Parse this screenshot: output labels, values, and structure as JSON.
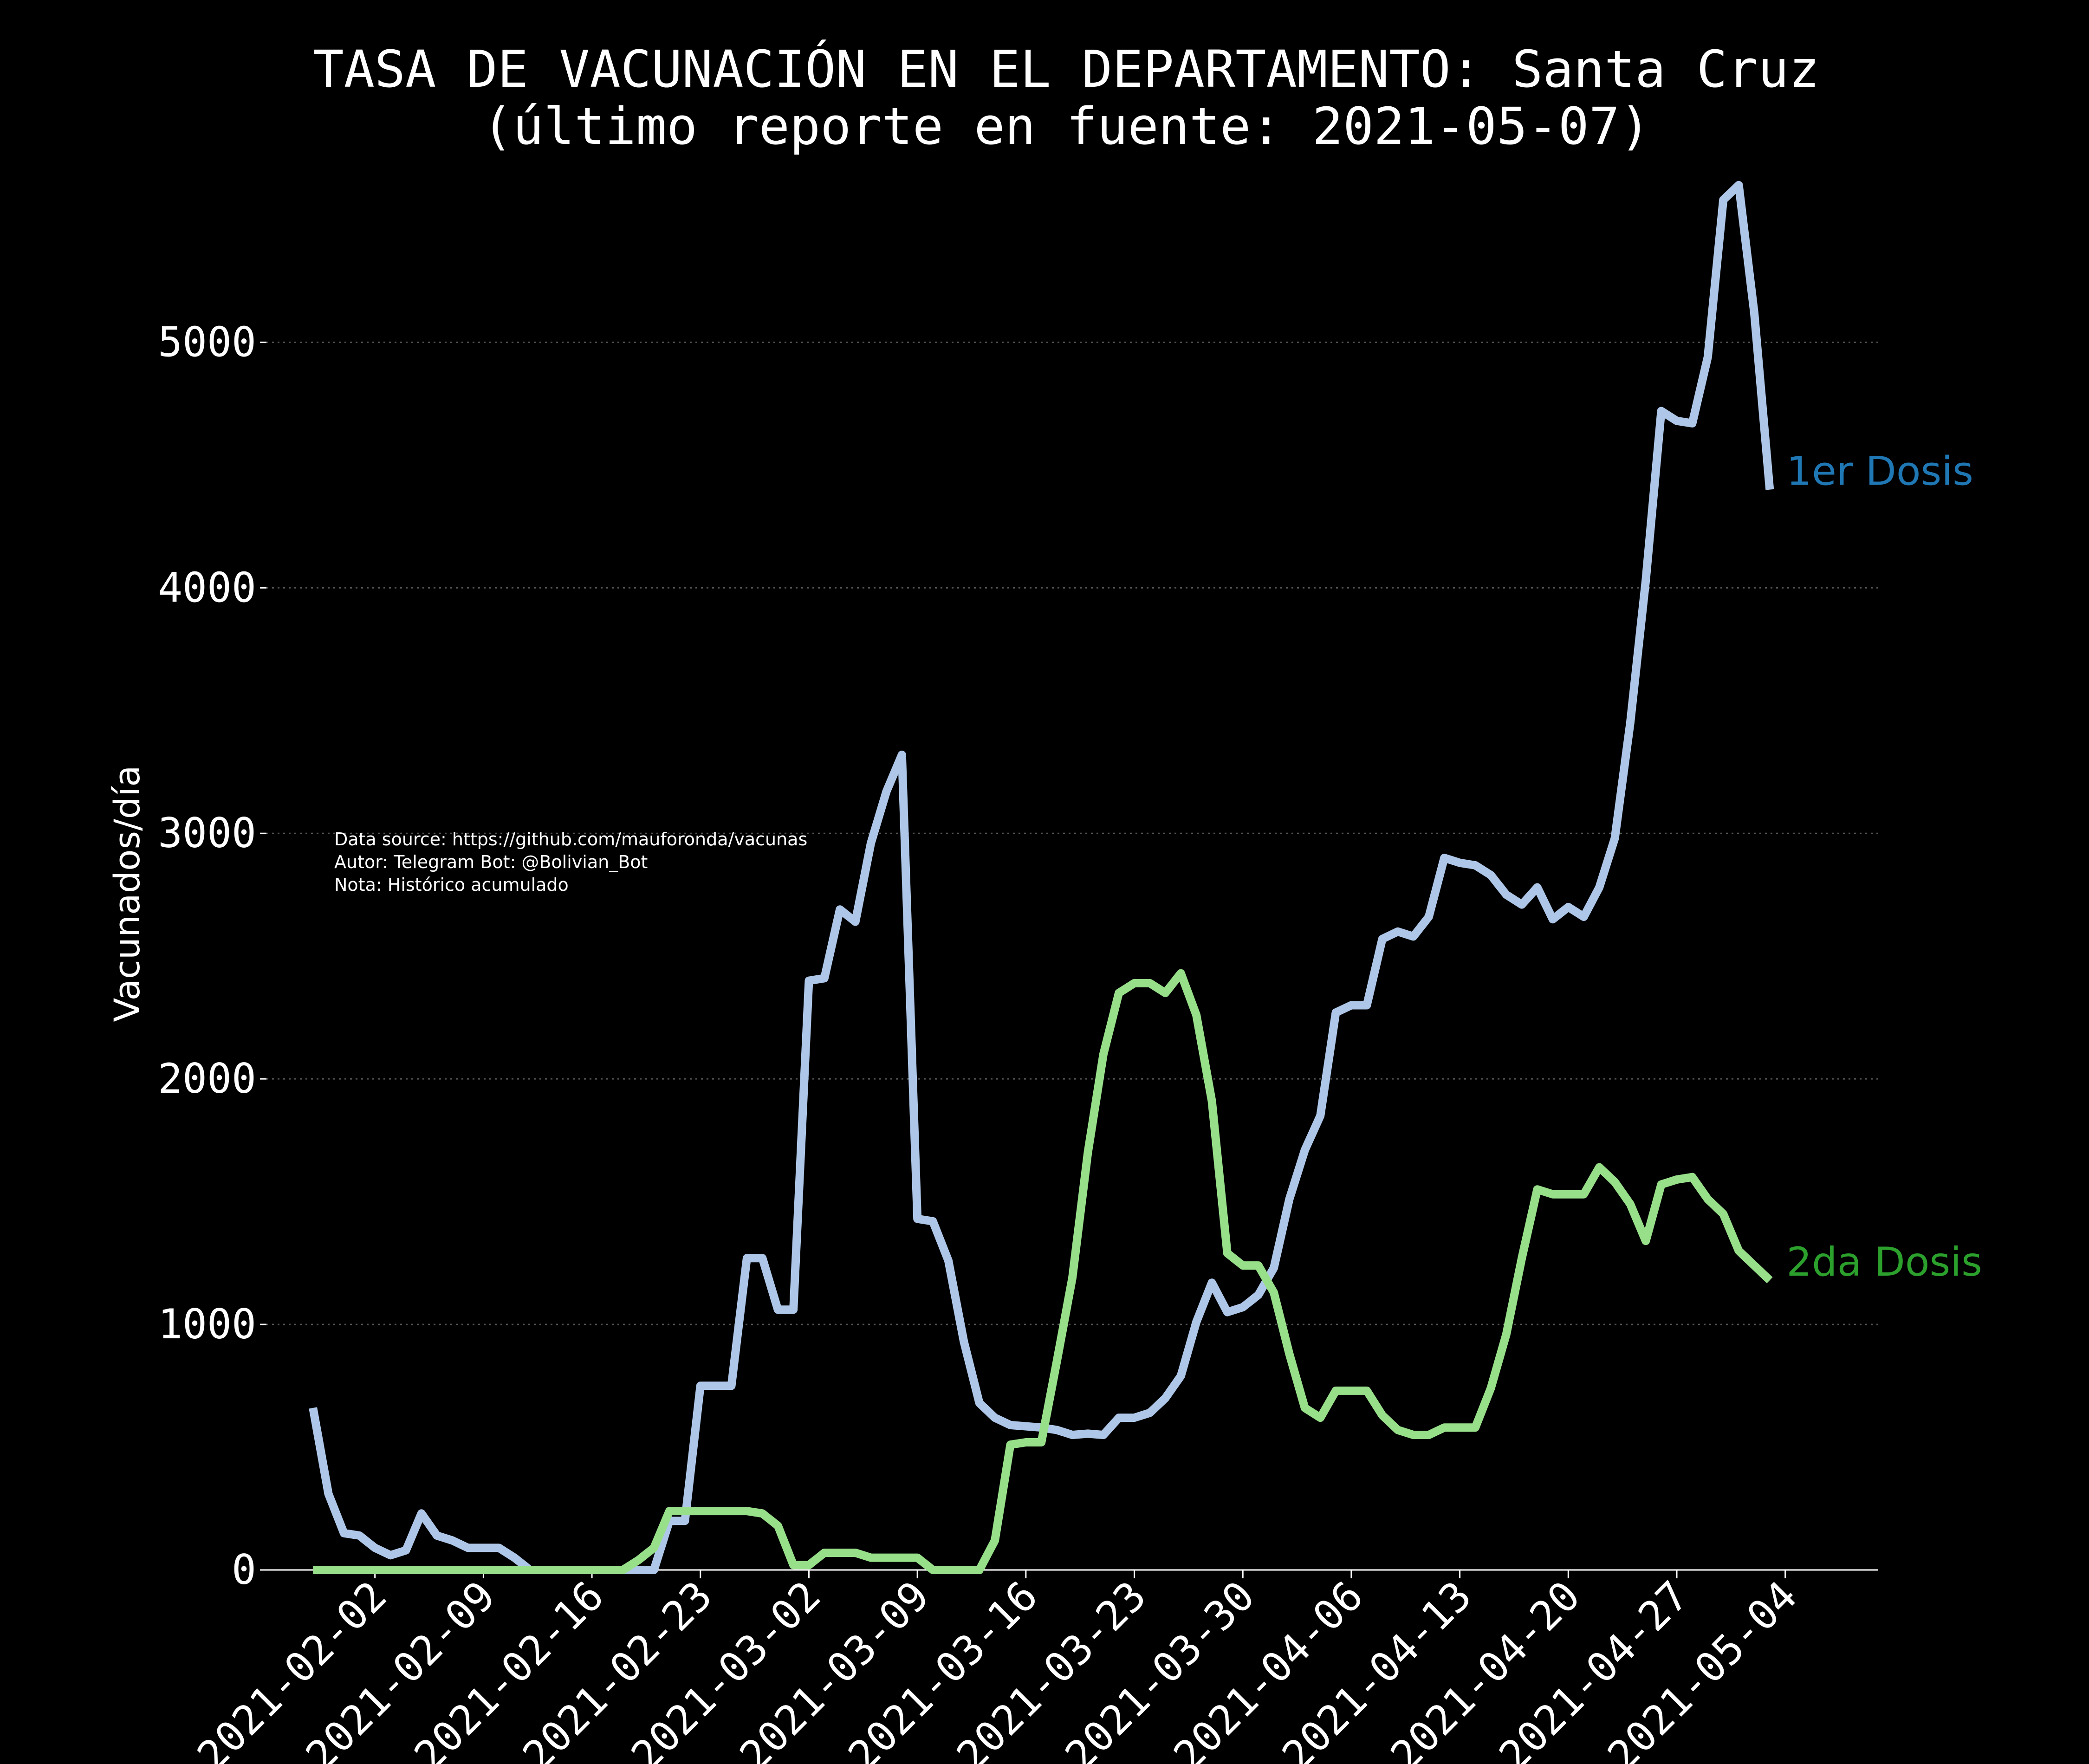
{
  "chart_data": {
    "type": "line",
    "title": "TASA DE VACUNACIÓN EN EL DEPARTAMENTO: Santa Cruz",
    "subtitle": "(último reporte en fuente: 2021-05-07)",
    "ylabel": "Vacunados/día",
    "xlabel": "",
    "ylim": [
      0,
      5600
    ],
    "yticks": [
      0,
      1000,
      2000,
      3000,
      4000,
      5000
    ],
    "ytick_labels": [
      "0",
      "1000",
      "2000",
      "3000",
      "4000",
      "5000"
    ],
    "xlim": [
      "2021-01-26",
      "2021-05-10"
    ],
    "xticks": [
      "2021-02-02",
      "2021-02-09",
      "2021-02-16",
      "2021-02-23",
      "2021-03-02",
      "2021-03-09",
      "2021-03-16",
      "2021-03-23",
      "2021-03-30",
      "2021-04-06",
      "2021-04-13",
      "2021-04-20",
      "2021-04-27",
      "2021-05-04"
    ],
    "grid": "horizontal-dotted",
    "notes": [
      "Data source: https://github.com/mauforonda/vacunas",
      "Autor: Telegram Bot: @Bolivian_Bot",
      "Nota: Histórico acumulado"
    ],
    "series": [
      {
        "name": "1er Dosis",
        "color": "#aec7e8",
        "label_color": "#1f77b4",
        "points": [
          [
            "2021-01-29",
            660
          ],
          [
            "2021-01-30",
            310
          ],
          [
            "2021-01-31",
            150
          ],
          [
            "2021-02-01",
            140
          ],
          [
            "2021-02-02",
            90
          ],
          [
            "2021-02-03",
            60
          ],
          [
            "2021-02-04",
            80
          ],
          [
            "2021-02-05",
            230
          ],
          [
            "2021-02-06",
            140
          ],
          [
            "2021-02-07",
            120
          ],
          [
            "2021-02-08",
            90
          ],
          [
            "2021-02-09",
            90
          ],
          [
            "2021-02-10",
            90
          ],
          [
            "2021-02-11",
            50
          ],
          [
            "2021-02-12",
            0
          ],
          [
            "2021-02-19",
            0
          ],
          [
            "2021-02-20",
            0
          ],
          [
            "2021-02-21",
            200
          ],
          [
            "2021-02-22",
            200
          ],
          [
            "2021-02-23",
            750
          ],
          [
            "2021-02-24",
            750
          ],
          [
            "2021-02-25",
            750
          ],
          [
            "2021-02-26",
            1270
          ],
          [
            "2021-02-27",
            1270
          ],
          [
            "2021-02-28",
            1060
          ],
          [
            "2021-03-01",
            1060
          ],
          [
            "2021-03-02",
            2400
          ],
          [
            "2021-03-03",
            2410
          ],
          [
            "2021-03-04",
            2690
          ],
          [
            "2021-03-05",
            2640
          ],
          [
            "2021-03-06",
            2960
          ],
          [
            "2021-03-07",
            3170
          ],
          [
            "2021-03-08",
            3320
          ],
          [
            "2021-03-09",
            1430
          ],
          [
            "2021-03-10",
            1420
          ],
          [
            "2021-03-11",
            1260
          ],
          [
            "2021-03-12",
            930
          ],
          [
            "2021-03-13",
            680
          ],
          [
            "2021-03-14",
            620
          ],
          [
            "2021-03-15",
            590
          ],
          [
            "2021-03-17",
            580
          ],
          [
            "2021-03-18",
            570
          ],
          [
            "2021-03-19",
            550
          ],
          [
            "2021-03-20",
            555
          ],
          [
            "2021-03-21",
            550
          ],
          [
            "2021-03-22",
            620
          ],
          [
            "2021-03-23",
            620
          ],
          [
            "2021-03-24",
            640
          ],
          [
            "2021-03-25",
            700
          ],
          [
            "2021-03-26",
            790
          ],
          [
            "2021-03-27",
            1010
          ],
          [
            "2021-03-28",
            1170
          ],
          [
            "2021-03-29",
            1050
          ],
          [
            "2021-03-30",
            1070
          ],
          [
            "2021-03-31",
            1120
          ],
          [
            "2021-04-01",
            1230
          ],
          [
            "2021-04-02",
            1510
          ],
          [
            "2021-04-03",
            1710
          ],
          [
            "2021-04-04",
            1850
          ],
          [
            "2021-04-05",
            2270
          ],
          [
            "2021-04-06",
            2300
          ],
          [
            "2021-04-07",
            2300
          ],
          [
            "2021-04-08",
            2570
          ],
          [
            "2021-04-09",
            2600
          ],
          [
            "2021-04-10",
            2580
          ],
          [
            "2021-04-11",
            2660
          ],
          [
            "2021-04-12",
            2900
          ],
          [
            "2021-04-13",
            2880
          ],
          [
            "2021-04-14",
            2870
          ],
          [
            "2021-04-15",
            2830
          ],
          [
            "2021-04-16",
            2750
          ],
          [
            "2021-04-17",
            2710
          ],
          [
            "2021-04-18",
            2780
          ],
          [
            "2021-04-19",
            2650
          ],
          [
            "2021-04-20",
            2700
          ],
          [
            "2021-04-21",
            2660
          ],
          [
            "2021-04-22",
            2780
          ],
          [
            "2021-04-23",
            2980
          ],
          [
            "2021-04-24",
            3450
          ],
          [
            "2021-04-25",
            4030
          ],
          [
            "2021-04-26",
            4720
          ],
          [
            "2021-04-27",
            4680
          ],
          [
            "2021-04-28",
            4670
          ],
          [
            "2021-04-29",
            4940
          ],
          [
            "2021-04-30",
            5580
          ],
          [
            "2021-05-01",
            5640
          ],
          [
            "2021-05-02",
            5120
          ],
          [
            "2021-05-03",
            4400
          ]
        ]
      },
      {
        "name": "2da Dosis",
        "color": "#98df8a",
        "label_color": "#2ca02c",
        "points": [
          [
            "2021-01-29",
            0
          ],
          [
            "2021-02-18",
            0
          ],
          [
            "2021-02-19",
            40
          ],
          [
            "2021-02-20",
            90
          ],
          [
            "2021-02-21",
            240
          ],
          [
            "2021-02-22",
            240
          ],
          [
            "2021-02-23",
            240
          ],
          [
            "2021-02-24",
            240
          ],
          [
            "2021-02-25",
            240
          ],
          [
            "2021-02-26",
            240
          ],
          [
            "2021-02-27",
            230
          ],
          [
            "2021-02-28",
            180
          ],
          [
            "2021-03-01",
            20
          ],
          [
            "2021-03-02",
            20
          ],
          [
            "2021-03-03",
            70
          ],
          [
            "2021-03-04",
            70
          ],
          [
            "2021-03-05",
            70
          ],
          [
            "2021-03-06",
            50
          ],
          [
            "2021-03-07",
            50
          ],
          [
            "2021-03-08",
            50
          ],
          [
            "2021-03-09",
            50
          ],
          [
            "2021-03-10",
            0
          ],
          [
            "2021-03-13",
            0
          ],
          [
            "2021-03-14",
            120
          ],
          [
            "2021-03-15",
            510
          ],
          [
            "2021-03-16",
            520
          ],
          [
            "2021-03-17",
            520
          ],
          [
            "2021-03-18",
            850
          ],
          [
            "2021-03-19",
            1190
          ],
          [
            "2021-03-20",
            1700
          ],
          [
            "2021-03-21",
            2100
          ],
          [
            "2021-03-22",
            2350
          ],
          [
            "2021-03-23",
            2390
          ],
          [
            "2021-03-24",
            2390
          ],
          [
            "2021-03-25",
            2350
          ],
          [
            "2021-03-26",
            2430
          ],
          [
            "2021-03-27",
            2260
          ],
          [
            "2021-03-28",
            1910
          ],
          [
            "2021-03-29",
            1290
          ],
          [
            "2021-03-30",
            1240
          ],
          [
            "2021-03-31",
            1240
          ],
          [
            "2021-04-01",
            1130
          ],
          [
            "2021-04-02",
            880
          ],
          [
            "2021-04-03",
            660
          ],
          [
            "2021-04-04",
            620
          ],
          [
            "2021-04-05",
            730
          ],
          [
            "2021-04-06",
            730
          ],
          [
            "2021-04-07",
            730
          ],
          [
            "2021-04-08",
            630
          ],
          [
            "2021-04-09",
            570
          ],
          [
            "2021-04-10",
            550
          ],
          [
            "2021-04-11",
            550
          ],
          [
            "2021-04-12",
            580
          ],
          [
            "2021-04-13",
            580
          ],
          [
            "2021-04-14",
            580
          ],
          [
            "2021-04-15",
            740
          ],
          [
            "2021-04-16",
            960
          ],
          [
            "2021-04-17",
            1270
          ],
          [
            "2021-04-18",
            1550
          ],
          [
            "2021-04-19",
            1530
          ],
          [
            "2021-04-20",
            1530
          ],
          [
            "2021-04-21",
            1530
          ],
          [
            "2021-04-22",
            1640
          ],
          [
            "2021-04-23",
            1580
          ],
          [
            "2021-04-24",
            1490
          ],
          [
            "2021-04-25",
            1340
          ],
          [
            "2021-04-26",
            1570
          ],
          [
            "2021-04-27",
            1590
          ],
          [
            "2021-04-28",
            1600
          ],
          [
            "2021-04-29",
            1510
          ],
          [
            "2021-04-30",
            1450
          ],
          [
            "2021-05-01",
            1300
          ],
          [
            "2021-05-02",
            1240
          ],
          [
            "2021-05-03",
            1180
          ]
        ]
      }
    ]
  }
}
